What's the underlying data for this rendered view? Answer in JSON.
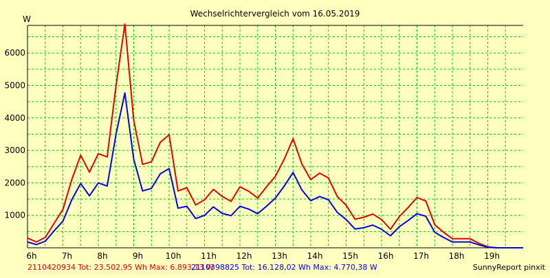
{
  "chart_data": {
    "type": "line",
    "title": "Wechselrichtervergleich vom 16.05.2019",
    "ylabel": "W",
    "xlabel": "",
    "grid": true,
    "ylim": [
      0,
      6850
    ],
    "xlim": [
      6,
      20
    ],
    "x_ticks": [
      6,
      7,
      8,
      9,
      10,
      11,
      12,
      13,
      14,
      15,
      16,
      17,
      18,
      19
    ],
    "x_tick_labels": [
      "6h",
      "7h",
      "8h",
      "9h",
      "10h",
      "11h",
      "12h",
      "13h",
      "14h",
      "15h",
      "16h",
      "17h",
      "18h",
      "19h"
    ],
    "y_ticks": [
      1000,
      2000,
      3000,
      4000,
      5000,
      6000
    ],
    "y_tick_labels": [
      "1000",
      "2000",
      "3000",
      "4000",
      "5000",
      "6000"
    ],
    "series": [
      {
        "name": "2110420934 Tot: 23.502,95 Wh Max: 6.893,13 W",
        "color": "#e00000",
        "x": [
          6.0,
          6.25,
          6.5,
          6.75,
          7.0,
          7.25,
          7.5,
          7.75,
          8.0,
          8.25,
          8.5,
          8.75,
          9.0,
          9.25,
          9.5,
          9.75,
          10.0,
          10.25,
          10.5,
          10.75,
          11.0,
          11.25,
          11.5,
          11.75,
          12.0,
          12.25,
          12.5,
          12.75,
          13.0,
          13.25,
          13.5,
          13.75,
          14.0,
          14.25,
          14.5,
          14.75,
          15.0,
          15.25,
          15.5,
          15.75,
          16.0,
          16.25,
          16.5,
          16.75,
          17.0,
          17.25,
          17.5,
          17.75,
          18.0,
          18.25,
          18.5,
          18.75,
          19.0,
          19.25,
          19.5,
          19.75,
          20.0
        ],
        "values": [
          300,
          180,
          320,
          750,
          1180,
          2100,
          2850,
          2330,
          2900,
          2800,
          5000,
          6890,
          3930,
          2570,
          2650,
          3250,
          3480,
          1750,
          1850,
          1320,
          1480,
          1800,
          1580,
          1430,
          1880,
          1740,
          1530,
          1880,
          2200,
          2730,
          3360,
          2580,
          2100,
          2300,
          2150,
          1580,
          1310,
          880,
          940,
          1040,
          870,
          570,
          960,
          1240,
          1550,
          1440,
          710,
          480,
          280,
          280,
          280,
          140,
          30,
          0,
          0,
          0,
          0
        ]
      },
      {
        "name": "2110398825 Tot: 16.128,02 Wh Max: 4.770,38 W",
        "color": "#0000e0",
        "x": [
          6.0,
          6.25,
          6.5,
          6.75,
          7.0,
          7.25,
          7.5,
          7.75,
          8.0,
          8.25,
          8.5,
          8.75,
          9.0,
          9.25,
          9.5,
          9.75,
          10.0,
          10.25,
          10.5,
          10.75,
          11.0,
          11.25,
          11.5,
          11.75,
          12.0,
          12.25,
          12.5,
          12.75,
          13.0,
          13.25,
          13.5,
          13.75,
          14.0,
          14.25,
          14.5,
          14.75,
          15.0,
          15.25,
          15.5,
          15.75,
          16.0,
          16.25,
          16.5,
          16.75,
          17.0,
          17.25,
          17.5,
          17.75,
          18.0,
          18.25,
          18.5,
          18.75,
          19.0,
          19.25,
          19.5,
          19.75,
          20.0
        ],
        "values": [
          180,
          100,
          200,
          520,
          820,
          1480,
          1980,
          1600,
          2000,
          1900,
          3500,
          4770,
          2730,
          1750,
          1830,
          2280,
          2440,
          1220,
          1280,
          900,
          1000,
          1260,
          1060,
          990,
          1280,
          1190,
          1050,
          1280,
          1530,
          1900,
          2320,
          1780,
          1450,
          1580,
          1480,
          1090,
          870,
          580,
          620,
          700,
          570,
          370,
          650,
          840,
          1050,
          970,
          480,
          320,
          180,
          180,
          180,
          90,
          20,
          0,
          0,
          0,
          0
        ]
      }
    ],
    "legend_texts": [
      "2110420934 Tot: 23.502,95 Wh Max: 6.893,13 W",
      "2110398825 Tot: 16.128,02 Wh Max: 4.770,38 W"
    ],
    "footer_credit": "SunnyReport pinxit",
    "colors": {
      "background": "#ffffc0",
      "grid": "#00cc00",
      "axis": "#000000"
    }
  }
}
